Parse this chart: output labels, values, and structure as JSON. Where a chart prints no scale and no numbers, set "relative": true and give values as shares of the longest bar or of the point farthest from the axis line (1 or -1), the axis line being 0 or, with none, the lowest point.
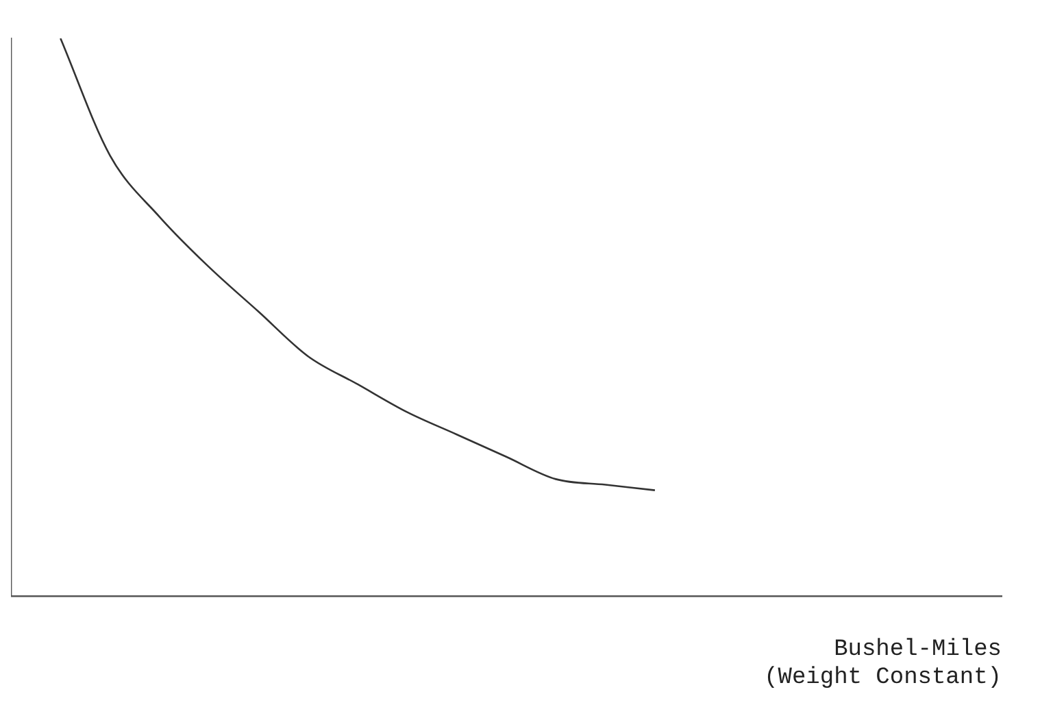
{
  "chart_data": {
    "type": "line",
    "relative": true,
    "xlabel": "Bushel-Miles\n(Weight Constant)",
    "categories": [
      null,
      null,
      null,
      null,
      null,
      null,
      null,
      null,
      null,
      null,
      null,
      null,
      null,
      null,
      null,
      null,
      null,
      null,
      null,
      null,
      null
    ],
    "series": [
      {
        "color": "#333333",
        "values": [
          null,
          1.0,
          0.79,
          0.68,
          0.59,
          0.51,
          0.43,
          0.38,
          0.33,
          0.29,
          0.25,
          0.21,
          0.2,
          0.19,
          null,
          null,
          null,
          null,
          null,
          null,
          null
        ]
      }
    ],
    "grid": false,
    "legend": false,
    "marker": "none",
    "line_style": "solid"
  }
}
